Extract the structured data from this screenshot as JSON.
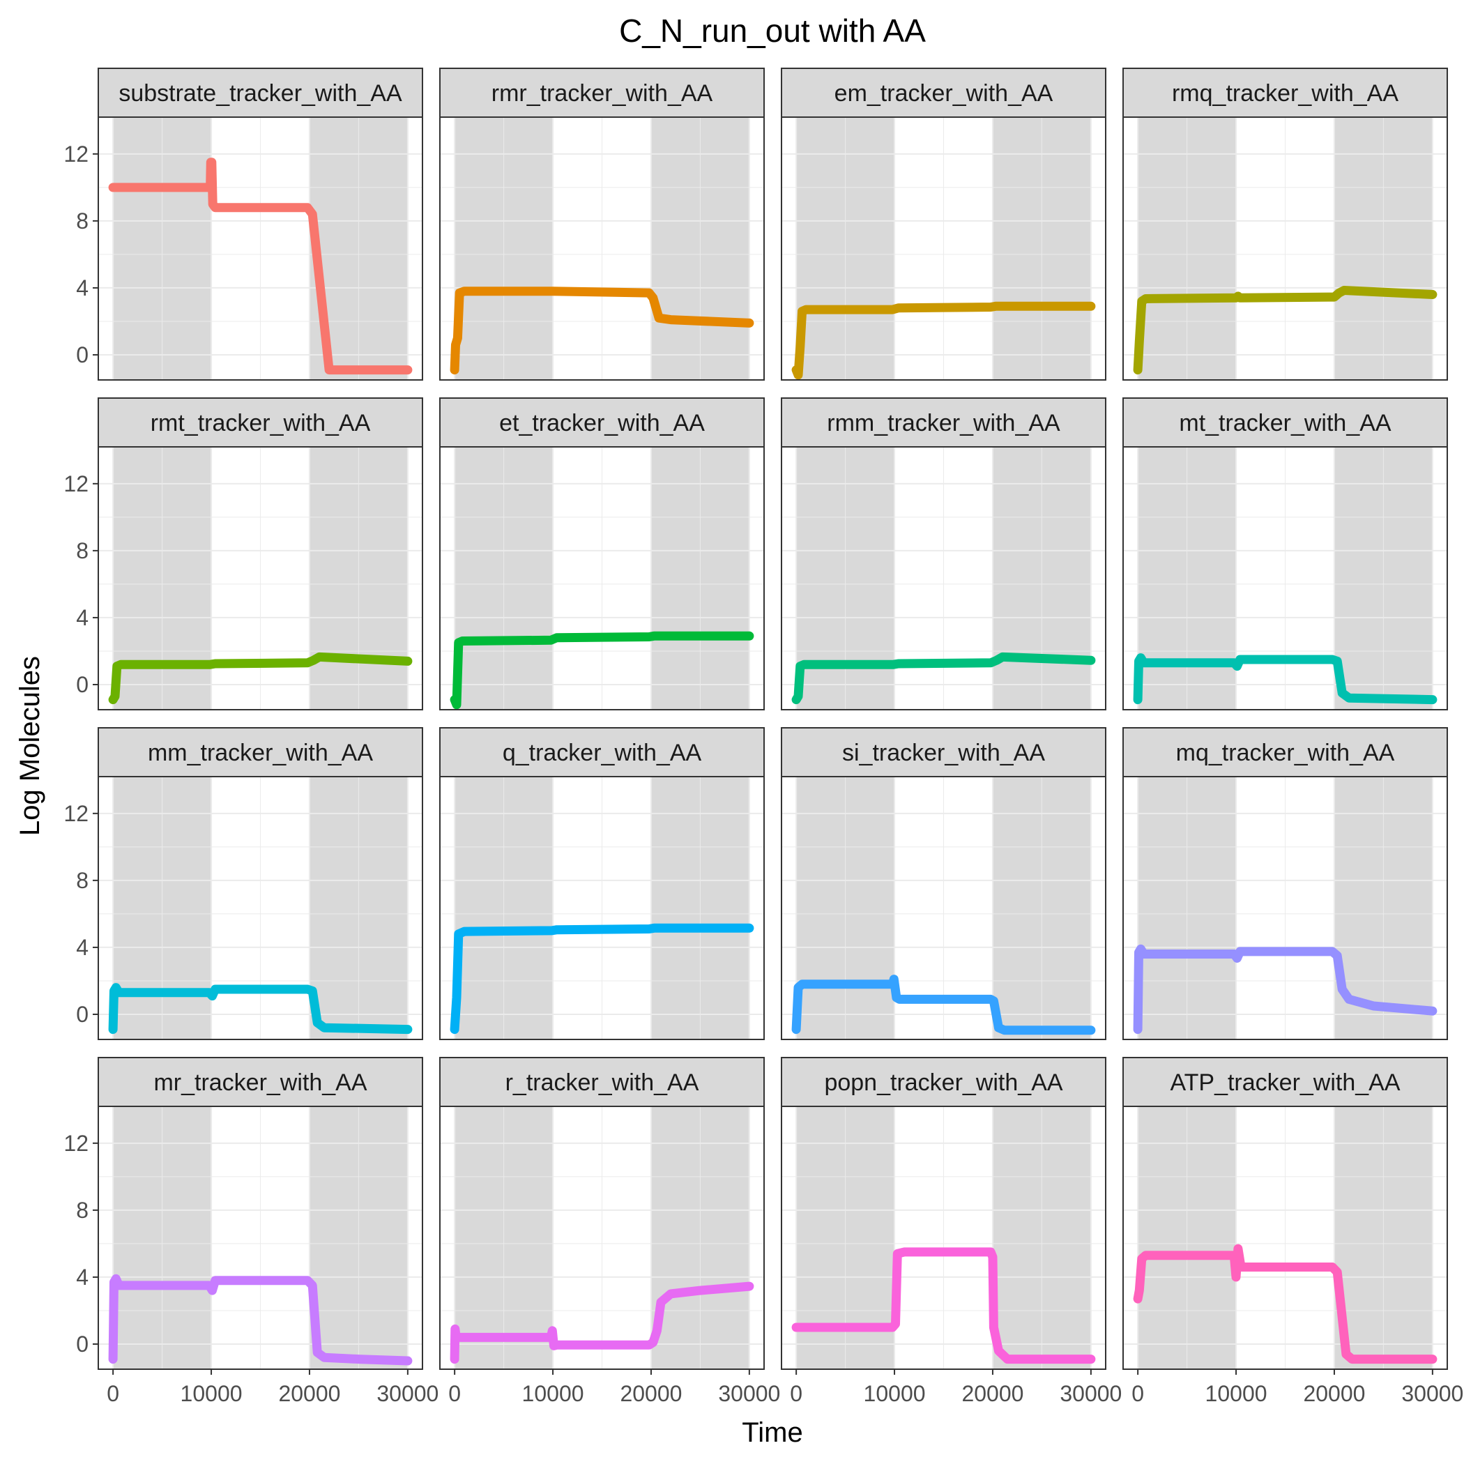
{
  "chart_data": {
    "type": "line",
    "title": "C_N_run_out with AA",
    "xlabel": "Time",
    "ylabel": "Log Molecules",
    "xlim": [
      -1500,
      31500
    ],
    "ylim": [
      -1.5,
      14.2
    ],
    "x_ticks": [
      0,
      10000,
      20000,
      30000
    ],
    "x_tick_labels": [
      "0",
      "10000",
      "20000",
      "30000"
    ],
    "y_ticks": [
      0,
      4,
      8,
      12
    ],
    "y_tick_labels": [
      "0",
      "4",
      "8",
      "12"
    ],
    "shaded_intervals": [
      [
        0,
        10000
      ],
      [
        20000,
        30000
      ]
    ],
    "shade_color": "#d9d9d9",
    "grid": true,
    "layout": "facet 4x4",
    "facets": [
      {
        "label": "substrate_tracker_with_AA",
        "color": "#F8766D",
        "points": [
          [
            0,
            10
          ],
          [
            9900,
            10
          ],
          [
            9950,
            11.5
          ],
          [
            10050,
            11.5
          ],
          [
            10150,
            9
          ],
          [
            10400,
            8.8
          ],
          [
            19800,
            8.8
          ],
          [
            20300,
            8.4
          ],
          [
            22000,
            -0.9
          ],
          [
            30000,
            -0.9
          ]
        ]
      },
      {
        "label": "rmr_tracker_with_AA",
        "color": "#E58700",
        "points": [
          [
            0,
            -0.9
          ],
          [
            100,
            0.6
          ],
          [
            300,
            1
          ],
          [
            500,
            3.7
          ],
          [
            1000,
            3.8
          ],
          [
            10000,
            3.8
          ],
          [
            19800,
            3.7
          ],
          [
            20200,
            3.4
          ],
          [
            20800,
            2.2
          ],
          [
            22000,
            2.1
          ],
          [
            30000,
            1.9
          ]
        ]
      },
      {
        "label": "em_tracker_with_AA",
        "color": "#C99800",
        "points": [
          [
            0,
            -0.9
          ],
          [
            200,
            -1.2
          ],
          [
            400,
            0.5
          ],
          [
            600,
            2.6
          ],
          [
            1000,
            2.7
          ],
          [
            9800,
            2.7
          ],
          [
            10400,
            2.8
          ],
          [
            19800,
            2.85
          ],
          [
            20300,
            2.9
          ],
          [
            30000,
            2.9
          ]
        ]
      },
      {
        "label": "rmq_tracker_with_AA",
        "color": "#A3A500",
        "points": [
          [
            0,
            -0.9
          ],
          [
            150,
            0.8
          ],
          [
            400,
            3.2
          ],
          [
            800,
            3.35
          ],
          [
            10000,
            3.4
          ],
          [
            10200,
            3.5
          ],
          [
            10400,
            3.4
          ],
          [
            20000,
            3.45
          ],
          [
            20500,
            3.7
          ],
          [
            21000,
            3.85
          ],
          [
            30000,
            3.6
          ]
        ]
      },
      {
        "label": "rmt_tracker_with_AA",
        "color": "#6BB100",
        "points": [
          [
            0,
            -0.9
          ],
          [
            200,
            -0.7
          ],
          [
            400,
            1.1
          ],
          [
            800,
            1.2
          ],
          [
            9900,
            1.2
          ],
          [
            10400,
            1.25
          ],
          [
            19800,
            1.3
          ],
          [
            20400,
            1.45
          ],
          [
            21000,
            1.65
          ],
          [
            30000,
            1.4
          ]
        ]
      },
      {
        "label": "et_tracker_with_AA",
        "color": "#00BA38",
        "points": [
          [
            0,
            -0.9
          ],
          [
            200,
            -1.2
          ],
          [
            400,
            2.5
          ],
          [
            800,
            2.6
          ],
          [
            9800,
            2.65
          ],
          [
            10400,
            2.8
          ],
          [
            19800,
            2.85
          ],
          [
            20300,
            2.9
          ],
          [
            30000,
            2.9
          ]
        ]
      },
      {
        "label": "rmm_tracker_with_AA",
        "color": "#00BF7D",
        "points": [
          [
            0,
            -0.9
          ],
          [
            200,
            -0.7
          ],
          [
            400,
            1.1
          ],
          [
            800,
            1.2
          ],
          [
            9900,
            1.2
          ],
          [
            10400,
            1.25
          ],
          [
            19800,
            1.3
          ],
          [
            20400,
            1.45
          ],
          [
            21000,
            1.65
          ],
          [
            30000,
            1.45
          ]
        ]
      },
      {
        "label": "mt_tracker_with_AA",
        "color": "#00C0AF",
        "points": [
          [
            0,
            -0.9
          ],
          [
            100,
            1.4
          ],
          [
            300,
            1.6
          ],
          [
            600,
            1.3
          ],
          [
            9800,
            1.3
          ],
          [
            10100,
            1.1
          ],
          [
            10400,
            1.5
          ],
          [
            19800,
            1.5
          ],
          [
            20300,
            1.4
          ],
          [
            20800,
            -0.5
          ],
          [
            21500,
            -0.8
          ],
          [
            30000,
            -0.9
          ]
        ]
      },
      {
        "label": "mm_tracker_with_AA",
        "color": "#00BCD8",
        "points": [
          [
            0,
            -0.9
          ],
          [
            100,
            1.4
          ],
          [
            300,
            1.6
          ],
          [
            600,
            1.3
          ],
          [
            9800,
            1.3
          ],
          [
            10100,
            1.1
          ],
          [
            10400,
            1.5
          ],
          [
            19800,
            1.5
          ],
          [
            20300,
            1.4
          ],
          [
            20800,
            -0.5
          ],
          [
            21500,
            -0.8
          ],
          [
            30000,
            -0.9
          ]
        ]
      },
      {
        "label": "q_tracker_with_AA",
        "color": "#00B0F6",
        "points": [
          [
            0,
            -0.9
          ],
          [
            200,
            1
          ],
          [
            400,
            4.8
          ],
          [
            1000,
            4.95
          ],
          [
            9900,
            5
          ],
          [
            10400,
            5.05
          ],
          [
            19800,
            5.1
          ],
          [
            20300,
            5.15
          ],
          [
            30000,
            5.15
          ]
        ]
      },
      {
        "label": "si_tracker_with_AA",
        "color": "#35A2FF",
        "points": [
          [
            0,
            -0.9
          ],
          [
            200,
            1.6
          ],
          [
            600,
            1.8
          ],
          [
            9800,
            1.8
          ],
          [
            9950,
            2.1
          ],
          [
            10200,
            1
          ],
          [
            10500,
            0.9
          ],
          [
            19800,
            0.9
          ],
          [
            20100,
            0.8
          ],
          [
            20600,
            -0.8
          ],
          [
            21200,
            -0.95
          ],
          [
            30000,
            -0.95
          ]
        ]
      },
      {
        "label": "mq_tracker_with_AA",
        "color": "#9590FF",
        "points": [
          [
            0,
            -0.9
          ],
          [
            100,
            3.7
          ],
          [
            300,
            3.9
          ],
          [
            600,
            3.6
          ],
          [
            9800,
            3.6
          ],
          [
            10100,
            3.35
          ],
          [
            10400,
            3.75
          ],
          [
            19800,
            3.75
          ],
          [
            20300,
            3.5
          ],
          [
            20800,
            1.5
          ],
          [
            21500,
            0.9
          ],
          [
            24000,
            0.5
          ],
          [
            30000,
            0.2
          ]
        ]
      },
      {
        "label": "mr_tracker_with_AA",
        "color": "#C77CFF",
        "points": [
          [
            0,
            -0.9
          ],
          [
            100,
            3.7
          ],
          [
            300,
            3.9
          ],
          [
            600,
            3.5
          ],
          [
            9800,
            3.5
          ],
          [
            10100,
            3.2
          ],
          [
            10400,
            3.8
          ],
          [
            19800,
            3.8
          ],
          [
            20300,
            3.5
          ],
          [
            20800,
            -0.5
          ],
          [
            21500,
            -0.8
          ],
          [
            25000,
            -0.9
          ],
          [
            30000,
            -1
          ]
        ]
      },
      {
        "label": "r_tracker_with_AA",
        "color": "#E76BF3",
        "points": [
          [
            0,
            -0.9
          ],
          [
            50,
            0.9
          ],
          [
            150,
            0.4
          ],
          [
            600,
            0.4
          ],
          [
            9800,
            0.4
          ],
          [
            9950,
            0.8
          ],
          [
            10100,
            -0.1
          ],
          [
            10400,
            -0.05
          ],
          [
            19800,
            -0.05
          ],
          [
            20200,
            0.1
          ],
          [
            20600,
            0.8
          ],
          [
            21000,
            2.5
          ],
          [
            22000,
            3
          ],
          [
            25000,
            3.2
          ],
          [
            30000,
            3.45
          ]
        ]
      },
      {
        "label": "popn_tracker_with_AA",
        "color": "#FA62DB",
        "points": [
          [
            0,
            1
          ],
          [
            9800,
            1
          ],
          [
            10100,
            1.2
          ],
          [
            10300,
            5.4
          ],
          [
            11000,
            5.5
          ],
          [
            19800,
            5.5
          ],
          [
            20000,
            5.2
          ],
          [
            20100,
            1
          ],
          [
            20600,
            -0.4
          ],
          [
            21500,
            -0.9
          ],
          [
            30000,
            -0.9
          ]
        ]
      },
      {
        "label": "ATP_tracker_with_AA",
        "color": "#FF62BC",
        "points": [
          [
            0,
            2.7
          ],
          [
            150,
            3.2
          ],
          [
            400,
            5.1
          ],
          [
            800,
            5.3
          ],
          [
            9800,
            5.3
          ],
          [
            10000,
            4
          ],
          [
            10200,
            5.7
          ],
          [
            10500,
            4.6
          ],
          [
            19800,
            4.6
          ],
          [
            20300,
            4.3
          ],
          [
            21200,
            -0.6
          ],
          [
            21800,
            -0.9
          ],
          [
            30000,
            -0.9
          ]
        ]
      }
    ]
  }
}
